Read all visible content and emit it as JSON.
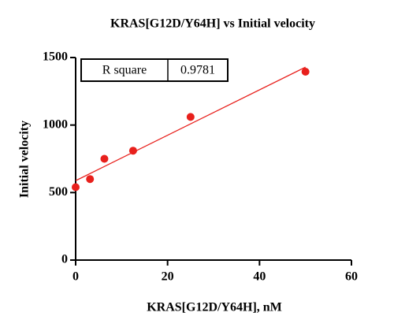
{
  "chart_data": {
    "type": "scatter",
    "title": "KRAS[G12D/Y64H] vs Initial velocity",
    "x_label": "KRAS[G12D/Y64H], nM",
    "y_label": "Initial velocity",
    "series": [
      {
        "color": "#e8201c",
        "x": [
          0,
          3.125,
          6.25,
          12.5,
          25,
          50
        ],
        "values": [
          540,
          600,
          750,
          810,
          1060,
          1395
        ]
      }
    ],
    "fit": {
      "color": "#e8201c",
      "x": [
        0,
        50
      ],
      "values": [
        588,
        1429
      ]
    },
    "stats": {
      "label": "R square",
      "value": 0.9781
    },
    "xlim": [
      0,
      60
    ],
    "xticks": [
      0,
      20,
      40,
      60
    ],
    "ylim": [
      0,
      1500
    ],
    "yticks": [
      0,
      500,
      1000,
      1500
    ],
    "grid": false
  }
}
